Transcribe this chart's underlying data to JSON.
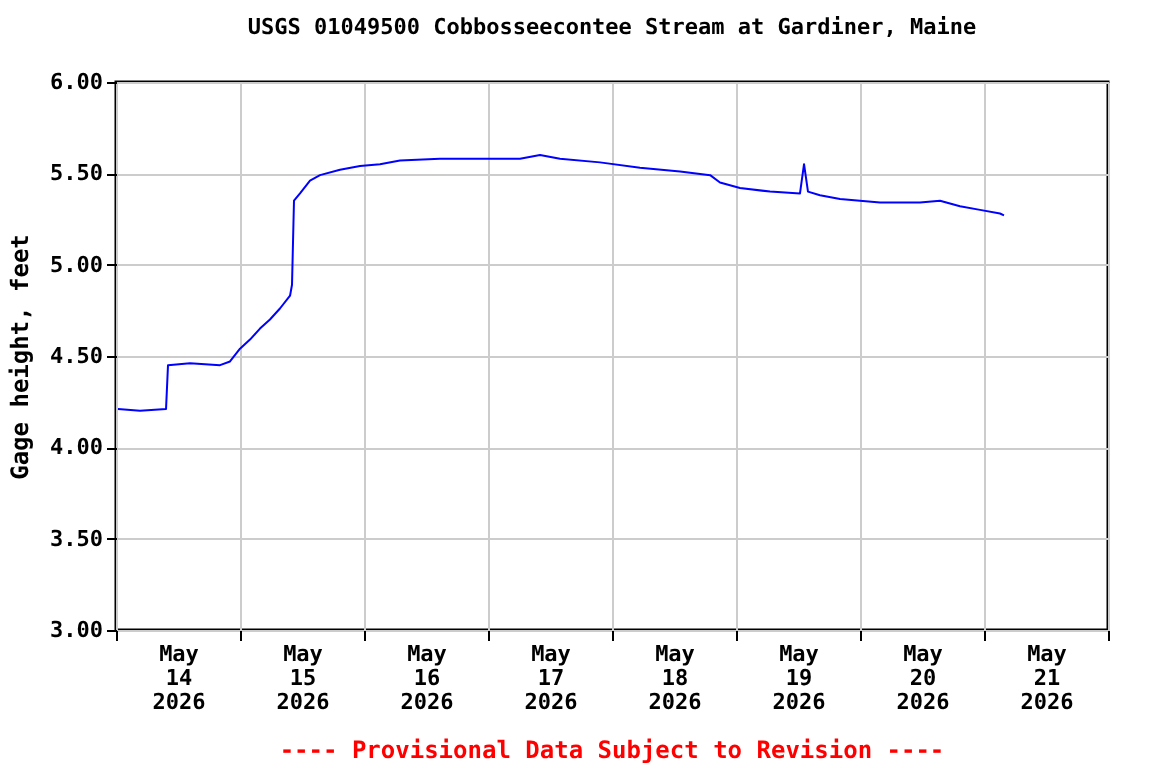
{
  "chart_data": {
    "type": "line",
    "title": "USGS 01049500 Cobbosseecontee Stream at Gardiner, Maine",
    "ylabel": "Gage height, feet",
    "annotations": [
      "---- Provisional Data Subject to Revision ----"
    ],
    "x": [
      "2026-05-14T00:23",
      "2026-05-14T04:39",
      "2026-05-14T09:41",
      "2026-05-14T10:04",
      "2026-05-14T14:19",
      "2026-05-14T20:08",
      "2026-05-14T22:04",
      "2026-05-15T00:00",
      "2026-05-15T01:56",
      "2026-05-15T03:52",
      "2026-05-15T05:48",
      "2026-05-15T07:44",
      "2026-05-15T09:41",
      "2026-05-15T10:04",
      "2026-05-15T10:27",
      "2026-05-15T11:37",
      "2026-05-15T13:33",
      "2026-05-15T15:29",
      "2026-05-15T19:21",
      "2026-05-15T23:14",
      "2026-05-16T03:06",
      "2026-05-16T06:58",
      "2026-05-16T14:42",
      "2026-05-16T22:27",
      "2026-05-17T06:12",
      "2026-05-17T10:04",
      "2026-05-17T13:56",
      "2026-05-17T21:41",
      "2026-05-18T05:25",
      "2026-05-18T13:10",
      "2026-05-18T19:00",
      "2026-05-18T20:54",
      "2026-05-19T00:46",
      "2026-05-19T06:35",
      "2026-05-19T12:23",
      "2026-05-19T13:10",
      "2026-05-19T13:56",
      "2026-05-19T16:15",
      "2026-05-19T20:08",
      "2026-05-20T03:52",
      "2026-05-20T11:37",
      "2026-05-20T15:29",
      "2026-05-20T19:21",
      "2026-05-20T23:14",
      "2026-05-21T03:06",
      "2026-05-21T03:52"
    ],
    "series": [
      {
        "color": "#0000ff",
        "values": [
          4.21,
          4.2,
          4.21,
          4.45,
          4.46,
          4.45,
          4.47,
          4.54,
          4.59,
          4.65,
          4.7,
          4.76,
          4.83,
          4.89,
          5.35,
          5.39,
          5.46,
          5.49,
          5.52,
          5.54,
          5.55,
          5.57,
          5.58,
          5.58,
          5.58,
          5.6,
          5.58,
          5.56,
          5.53,
          5.51,
          5.49,
          5.45,
          5.42,
          5.4,
          5.39,
          5.55,
          5.4,
          5.38,
          5.36,
          5.34,
          5.34,
          5.35,
          5.32,
          5.3,
          5.28,
          5.27
        ]
      }
    ],
    "xlim": [
      "2026-05-14T00:00",
      "2026-05-22T00:00"
    ],
    "xticks": [
      {
        "value": "2026-05-14T00:00",
        "label": null
      },
      {
        "value": "2026-05-15T00:00",
        "label": null
      },
      {
        "value": "2026-05-16T00:00",
        "label": null
      },
      {
        "value": "2026-05-17T00:00",
        "label": null
      },
      {
        "value": "2026-05-18T00:00",
        "label": null
      },
      {
        "value": "2026-05-19T00:00",
        "label": null
      },
      {
        "value": "2026-05-20T00:00",
        "label": null
      },
      {
        "value": "2026-05-21T00:00",
        "label": null
      },
      {
        "value": "2026-05-22T00:00",
        "label": null
      },
      {
        "value": "2026-05-14T12:00",
        "label": "May 14 2026"
      },
      {
        "value": "2026-05-15T12:00",
        "label": "May 15 2026"
      },
      {
        "value": "2026-05-16T12:00",
        "label": "May 16 2026"
      },
      {
        "value": "2026-05-17T12:00",
        "label": "May 17 2026"
      },
      {
        "value": "2026-05-18T12:00",
        "label": "May 18 2026"
      },
      {
        "value": "2026-05-19T12:00",
        "label": "May 19 2026"
      },
      {
        "value": "2026-05-20T12:00",
        "label": "May 20 2026"
      },
      {
        "value": "2026-05-21T12:00",
        "label": "May 21 2026"
      }
    ],
    "ylim": [
      3,
      6
    ],
    "yticks": [
      {
        "value": 3,
        "label": "3.00"
      },
      {
        "value": 3.5,
        "label": "3.50"
      },
      {
        "value": 4,
        "label": "4.00"
      },
      {
        "value": 4.5,
        "label": "4.50"
      },
      {
        "value": 5,
        "label": "5.00"
      },
      {
        "value": 5.5,
        "label": "5.50"
      },
      {
        "value": 6,
        "label": "6.00"
      }
    ],
    "grid": true,
    "line_style": "solid"
  }
}
